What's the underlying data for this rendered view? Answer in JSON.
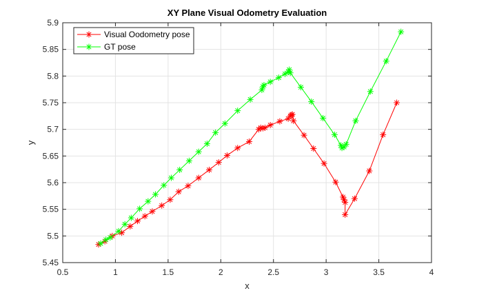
{
  "chart_data": {
    "type": "line",
    "title": "XY Plane Visual Odometry Evaluation",
    "xlabel": "x",
    "ylabel": "y",
    "xlim": [
      0.5,
      4
    ],
    "ylim": [
      5.45,
      5.9
    ],
    "xticks": [
      "0.5",
      "1",
      "1.5",
      "2",
      "2.5",
      "3",
      "3.5",
      "4"
    ],
    "yticks": [
      "5.45",
      "5.5",
      "5.55",
      "5.6",
      "5.65",
      "5.7",
      "5.75",
      "5.8",
      "5.85",
      "5.9"
    ],
    "grid": true,
    "legend_position": "top-left",
    "marker": "asterisk",
    "series": [
      {
        "name": "Visual Oodometry pose",
        "color": "#ff0000",
        "points": [
          [
            0.84,
            5.484
          ],
          [
            0.9,
            5.49
          ],
          [
            0.97,
            5.5
          ],
          [
            1.06,
            5.506
          ],
          [
            1.14,
            5.518
          ],
          [
            1.21,
            5.528
          ],
          [
            1.28,
            5.537
          ],
          [
            1.35,
            5.546
          ],
          [
            1.44,
            5.557
          ],
          [
            1.52,
            5.568
          ],
          [
            1.6,
            5.583
          ],
          [
            1.69,
            5.594
          ],
          [
            1.79,
            5.609
          ],
          [
            1.89,
            5.624
          ],
          [
            1.98,
            5.638
          ],
          [
            2.06,
            5.651
          ],
          [
            2.16,
            5.665
          ],
          [
            2.27,
            5.677
          ],
          [
            2.36,
            5.7
          ],
          [
            2.38,
            5.703
          ],
          [
            2.4,
            5.702
          ],
          [
            2.42,
            5.703
          ],
          [
            2.47,
            5.708
          ],
          [
            2.56,
            5.715
          ],
          [
            2.64,
            5.72
          ],
          [
            2.66,
            5.725
          ],
          [
            2.67,
            5.727
          ],
          [
            2.68,
            5.728
          ],
          [
            2.69,
            5.716
          ],
          [
            2.79,
            5.689
          ],
          [
            2.88,
            5.664
          ],
          [
            2.98,
            5.636
          ],
          [
            3.09,
            5.601
          ],
          [
            3.16,
            5.573
          ],
          [
            3.17,
            5.568
          ],
          [
            3.18,
            5.563
          ],
          [
            3.18,
            5.54
          ],
          [
            3.27,
            5.57
          ],
          [
            3.41,
            5.622
          ],
          [
            3.54,
            5.69
          ],
          [
            3.67,
            5.75
          ]
        ]
      },
      {
        "name": "GT pose",
        "color": "#00ff00",
        "points": [
          [
            0.86,
            5.486
          ],
          [
            0.91,
            5.493
          ],
          [
            0.95,
            5.497
          ],
          [
            1.03,
            5.509
          ],
          [
            1.09,
            5.522
          ],
          [
            1.15,
            5.534
          ],
          [
            1.23,
            5.551
          ],
          [
            1.31,
            5.565
          ],
          [
            1.38,
            5.578
          ],
          [
            1.46,
            5.595
          ],
          [
            1.53,
            5.609
          ],
          [
            1.61,
            5.624
          ],
          [
            1.7,
            5.641
          ],
          [
            1.79,
            5.658
          ],
          [
            1.87,
            5.673
          ],
          [
            1.95,
            5.694
          ],
          [
            2.04,
            5.711
          ],
          [
            2.16,
            5.735
          ],
          [
            2.28,
            5.756
          ],
          [
            2.39,
            5.774
          ],
          [
            2.4,
            5.78
          ],
          [
            2.41,
            5.783
          ],
          [
            2.47,
            5.789
          ],
          [
            2.55,
            5.797
          ],
          [
            2.61,
            5.804
          ],
          [
            2.64,
            5.808
          ],
          [
            2.65,
            5.812
          ],
          [
            2.66,
            5.806
          ],
          [
            2.76,
            5.779
          ],
          [
            2.86,
            5.752
          ],
          [
            2.97,
            5.721
          ],
          [
            3.08,
            5.69
          ],
          [
            3.14,
            5.67
          ],
          [
            3.15,
            5.665
          ],
          [
            3.17,
            5.667
          ],
          [
            3.19,
            5.672
          ],
          [
            3.28,
            5.716
          ],
          [
            3.42,
            5.771
          ],
          [
            3.57,
            5.828
          ],
          [
            3.71,
            5.883
          ]
        ]
      }
    ]
  }
}
